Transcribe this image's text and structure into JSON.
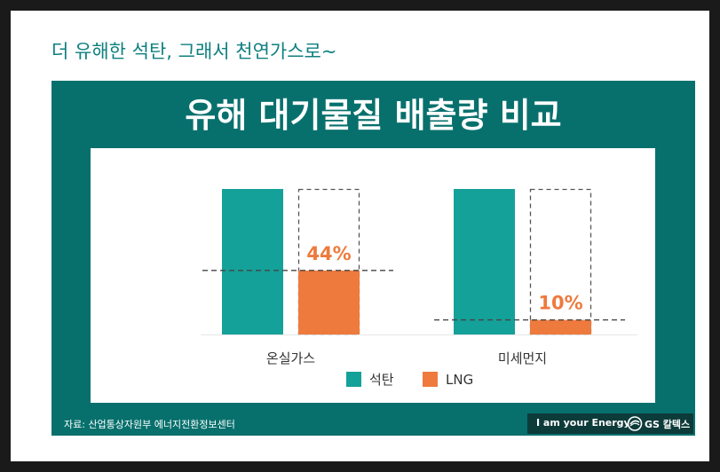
{
  "headline": "더 유해한 석탄, 그래서 천연가스로~",
  "source": "자료: 산업통상자원부 에너지전환정보센터",
  "brand": {
    "tagline": "I am your Energy",
    "name": "GS 칼텍스"
  },
  "colors": {
    "coal": "#14a19a",
    "lng": "#ee7a3d",
    "panel": "#07706d",
    "headline": "#0e7f80"
  },
  "chart_data": {
    "type": "bar",
    "title": "유해 대기물질 배출량 비교",
    "categories": [
      "온실가스",
      "미세먼지"
    ],
    "series": [
      {
        "name": "석탄",
        "values": [
          100,
          100
        ]
      },
      {
        "name": "LNG",
        "values": [
          44,
          10
        ]
      }
    ],
    "data_labels": [
      "44%",
      "10%"
    ],
    "ylim": [
      0,
      100
    ],
    "legend": "bottom-center",
    "grid": false
  }
}
